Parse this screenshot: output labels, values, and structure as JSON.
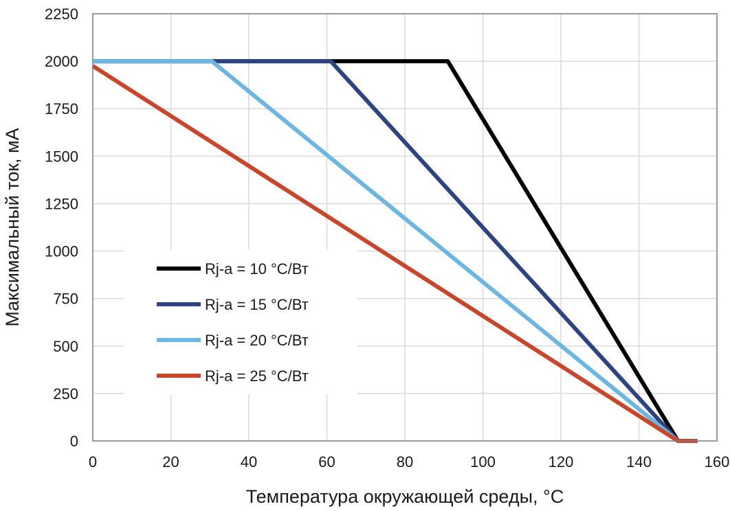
{
  "chart_data": {
    "type": "line",
    "xlabel": "Температура окружающей среды, °C",
    "ylabel": "Максимальный ток, мА",
    "xlim": [
      0,
      160
    ],
    "ylim": [
      0,
      2250
    ],
    "xticks": [
      0,
      20,
      40,
      60,
      80,
      100,
      120,
      140,
      160
    ],
    "yticks": [
      0,
      250,
      500,
      750,
      1000,
      1250,
      1500,
      1750,
      2000,
      2250
    ],
    "grid": true,
    "legend_position": "center-left",
    "series": [
      {
        "name": "Rj-a = 10 °C/Вт",
        "color": "#000000",
        "points": [
          [
            0,
            2000
          ],
          [
            91,
            2000
          ],
          [
            150,
            0
          ],
          [
            155,
            0
          ]
        ]
      },
      {
        "name": "Rj-a = 15 °C/Вт",
        "color": "#2e4482",
        "points": [
          [
            0,
            2000
          ],
          [
            61,
            2000
          ],
          [
            150,
            0
          ],
          [
            155,
            0
          ]
        ]
      },
      {
        "name": "Rj-a = 20 °C/Вт",
        "color": "#6cb6e2",
        "points": [
          [
            0,
            2000
          ],
          [
            30.5,
            2000
          ],
          [
            150,
            0
          ],
          [
            155,
            0
          ]
        ]
      },
      {
        "name": "Rj-a = 25 °C/Вт",
        "color": "#c8462a",
        "points": [
          [
            0,
            1975
          ],
          [
            150,
            0
          ],
          [
            155,
            0
          ]
        ]
      }
    ]
  }
}
